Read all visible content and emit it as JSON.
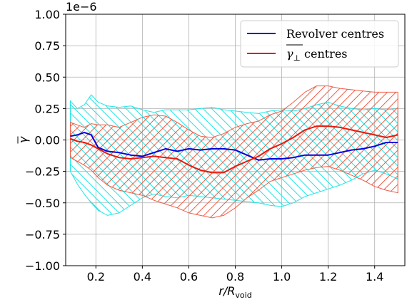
{
  "chart_data": {
    "type": "line",
    "xlabel": "r/R",
    "xlabel_subscript": "void",
    "ylabel": "γ",
    "y_offset_label": "1e−6",
    "xlim": [
      0.07,
      1.53
    ],
    "ylim": [
      -1.0,
      1.0
    ],
    "grid": true,
    "legend_position": "top-right",
    "x_ticks": [
      0.2,
      0.4,
      0.6,
      0.8,
      1.0,
      1.2,
      1.4
    ],
    "x_tick_labels": [
      "0.2",
      "0.4",
      "0.6",
      "0.8",
      "1.0",
      "1.2",
      "1.4"
    ],
    "y_ticks": [
      1.0,
      0.75,
      0.5,
      0.25,
      0.0,
      -0.25,
      -0.5,
      -0.75,
      -1.0
    ],
    "y_tick_labels": [
      "1.00",
      "0.75",
      "0.50",
      "0.25",
      "0.00",
      "−0.25",
      "−0.50",
      "−0.75",
      "−1.00"
    ],
    "x": [
      0.09,
      0.12,
      0.15,
      0.18,
      0.21,
      0.25,
      0.3,
      0.35,
      0.4,
      0.45,
      0.5,
      0.55,
      0.6,
      0.65,
      0.7,
      0.75,
      0.8,
      0.85,
      0.9,
      0.95,
      1.0,
      1.05,
      1.1,
      1.15,
      1.2,
      1.25,
      1.3,
      1.35,
      1.4,
      1.45,
      1.5
    ],
    "series": [
      {
        "name": "Revolver centres",
        "color": "#0000dd",
        "values": [
          0.03,
          0.04,
          0.06,
          0.04,
          -0.06,
          -0.09,
          -0.1,
          -0.12,
          -0.13,
          -0.1,
          -0.07,
          -0.09,
          -0.07,
          -0.08,
          -0.07,
          -0.07,
          -0.08,
          -0.12,
          -0.16,
          -0.15,
          -0.15,
          -0.14,
          -0.12,
          -0.12,
          -0.12,
          -0.1,
          -0.08,
          -0.07,
          -0.05,
          -0.02,
          -0.02
        ],
        "band_upper": [
          0.31,
          0.25,
          0.28,
          0.36,
          0.3,
          0.27,
          0.26,
          0.27,
          0.24,
          0.22,
          0.24,
          0.24,
          0.24,
          0.25,
          0.26,
          0.24,
          0.23,
          0.22,
          0.21,
          0.23,
          0.24,
          0.23,
          0.25,
          0.28,
          0.3,
          0.27,
          0.25,
          0.24,
          0.25,
          0.24,
          0.25
        ],
        "band_lower": [
          -0.25,
          -0.35,
          -0.43,
          -0.5,
          -0.56,
          -0.6,
          -0.58,
          -0.52,
          -0.46,
          -0.43,
          -0.45,
          -0.46,
          -0.44,
          -0.45,
          -0.46,
          -0.47,
          -0.48,
          -0.49,
          -0.5,
          -0.52,
          -0.53,
          -0.5,
          -0.45,
          -0.42,
          -0.39,
          -0.36,
          -0.32,
          -0.27,
          -0.24,
          -0.27,
          -0.31
        ],
        "band_color": "#1fe6e6",
        "hatch": "backslash"
      },
      {
        "name": "γ⊥ centres",
        "label_main": "γ",
        "label_sub": "⊥",
        "label_rest": " centres",
        "color": "#e81a0d",
        "values": [
          0.01,
          -0.01,
          -0.02,
          -0.04,
          -0.07,
          -0.11,
          -0.14,
          -0.15,
          -0.14,
          -0.13,
          -0.14,
          -0.15,
          -0.2,
          -0.24,
          -0.26,
          -0.26,
          -0.21,
          -0.17,
          -0.13,
          -0.07,
          -0.03,
          0.02,
          0.08,
          0.11,
          0.11,
          0.1,
          0.08,
          0.06,
          0.04,
          0.02,
          0.04
        ],
        "band_upper": [
          0.14,
          0.12,
          0.1,
          0.13,
          0.12,
          0.12,
          0.1,
          0.14,
          0.18,
          0.2,
          0.19,
          0.14,
          0.08,
          0.03,
          0.02,
          0.05,
          0.1,
          0.13,
          0.15,
          0.2,
          0.23,
          0.3,
          0.38,
          0.43,
          0.43,
          0.41,
          0.4,
          0.39,
          0.38,
          0.38,
          0.38
        ],
        "band_lower": [
          -0.14,
          -0.17,
          -0.2,
          -0.24,
          -0.3,
          -0.36,
          -0.4,
          -0.42,
          -0.44,
          -0.48,
          -0.51,
          -0.54,
          -0.58,
          -0.6,
          -0.62,
          -0.6,
          -0.54,
          -0.46,
          -0.4,
          -0.33,
          -0.3,
          -0.27,
          -0.24,
          -0.22,
          -0.21,
          -0.24,
          -0.28,
          -0.32,
          -0.37,
          -0.4,
          -0.42
        ],
        "band_color": "#f25c45",
        "hatch": "slash"
      }
    ]
  }
}
